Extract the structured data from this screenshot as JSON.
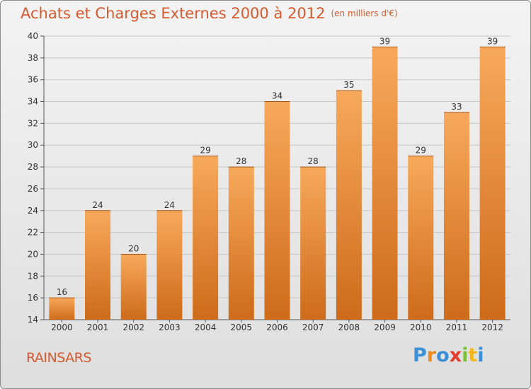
{
  "header": {
    "title": "Achats et Charges Externes 2000 à 2012",
    "subtitle": "(en milliers d'€)"
  },
  "footer": {
    "commune": "RAINSARS",
    "brand": "Proxiti",
    "brand_colors": [
      "#3a8fd6",
      "#f08a1c",
      "#3a8fd6",
      "#e33b2e",
      "#7bbf3a",
      "#f0b81c",
      "#3a8fd6"
    ]
  },
  "colors": {
    "bar_light": "#f7a95a",
    "bar_dark": "#cd6b1a",
    "title": "#d65a2e",
    "grid": "#c8c8c8"
  },
  "chart_data": {
    "type": "bar",
    "categories": [
      "2000",
      "2001",
      "2002",
      "2003",
      "2004",
      "2005",
      "2006",
      "2007",
      "2008",
      "2009",
      "2010",
      "2011",
      "2012"
    ],
    "values": [
      16,
      24,
      20,
      24,
      29,
      28,
      34,
      28,
      35,
      39,
      29,
      33,
      39
    ],
    "data_labels": [
      "16",
      "24",
      "20",
      "24",
      "29",
      "28",
      "34",
      "28",
      "35",
      "39",
      "29",
      "33",
      "39"
    ],
    "yticks": [
      "14",
      "16",
      "18",
      "20",
      "22",
      "24",
      "26",
      "28",
      "30",
      "32",
      "34",
      "36",
      "38",
      "40"
    ],
    "ylim": [
      14,
      40
    ],
    "grid": true
  }
}
